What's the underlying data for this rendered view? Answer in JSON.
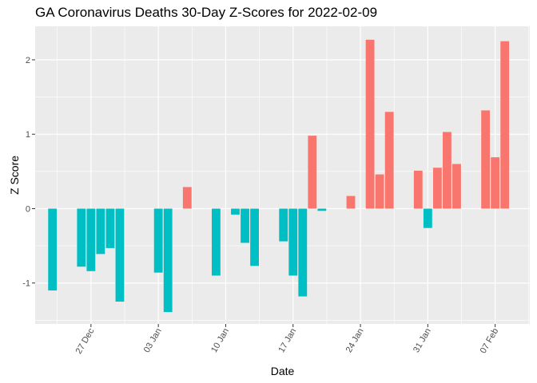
{
  "chart_data": {
    "type": "bar",
    "title": "GA Coronavirus Deaths 30-Day Z-Scores for 2022-02-09",
    "xlabel": "Date",
    "ylabel": "Z Score",
    "ylim": [
      -1.55,
      2.45
    ],
    "xlim": [
      -1.8,
      49.6
    ],
    "y_ticks": [
      -1,
      0,
      1,
      2
    ],
    "x_ticks": [
      {
        "label": "27 Dec",
        "day": 4
      },
      {
        "label": "03 Jan",
        "day": 11
      },
      {
        "label": "10 Jan",
        "day": 18
      },
      {
        "label": "17 Jan",
        "day": 25
      },
      {
        "label": "24 Jan",
        "day": 32
      },
      {
        "label": "31 Jan",
        "day": 39
      },
      {
        "label": "07 Feb",
        "day": 46
      }
    ],
    "grid": true,
    "legend": "none",
    "colors": {
      "positive": "#F8766D",
      "negative": "#00BFC4",
      "panel": "#EBEBEB",
      "grid": "#FFFFFF"
    },
    "bars": [
      {
        "day": 0,
        "value": -1.1
      },
      {
        "day": 3,
        "value": -0.78
      },
      {
        "day": 4,
        "value": -0.84
      },
      {
        "day": 5,
        "value": -0.61
      },
      {
        "day": 6,
        "value": -0.53
      },
      {
        "day": 7,
        "value": -1.25
      },
      {
        "day": 11,
        "value": -0.86
      },
      {
        "day": 12,
        "value": -1.39
      },
      {
        "day": 14,
        "value": 0.29
      },
      {
        "day": 17,
        "value": -0.9
      },
      {
        "day": 19,
        "value": -0.08
      },
      {
        "day": 20,
        "value": -0.46
      },
      {
        "day": 21,
        "value": -0.77
      },
      {
        "day": 24,
        "value": -0.44
      },
      {
        "day": 25,
        "value": -0.9
      },
      {
        "day": 26,
        "value": -1.18
      },
      {
        "day": 27,
        "value": 0.98
      },
      {
        "day": 28,
        "value": -0.03
      },
      {
        "day": 31,
        "value": 0.17
      },
      {
        "day": 33,
        "value": 2.27
      },
      {
        "day": 34,
        "value": 0.46
      },
      {
        "day": 35,
        "value": 1.3
      },
      {
        "day": 38,
        "value": 0.51
      },
      {
        "day": 39,
        "value": -0.26
      },
      {
        "day": 40,
        "value": 0.55
      },
      {
        "day": 41,
        "value": 1.03
      },
      {
        "day": 42,
        "value": 0.6
      },
      {
        "day": 45,
        "value": 1.32
      },
      {
        "day": 46,
        "value": 0.69
      },
      {
        "day": 47,
        "value": 2.25
      }
    ]
  }
}
